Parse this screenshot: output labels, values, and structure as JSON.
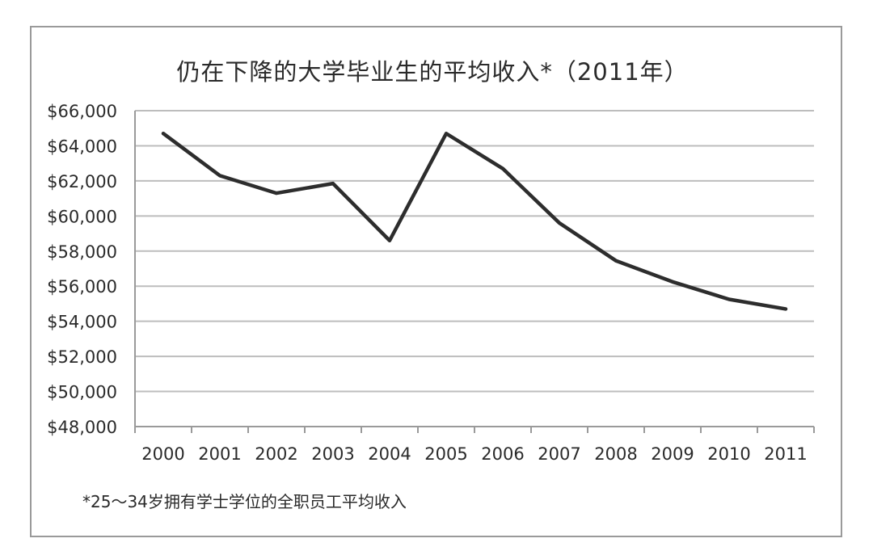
{
  "chart_data": {
    "type": "line",
    "title": "仍在下降的大学毕业生的平均收入*（2011年）",
    "xlabel": "",
    "ylabel": "",
    "categories": [
      "2000",
      "2001",
      "2002",
      "2003",
      "2004",
      "2005",
      "2006",
      "2007",
      "2008",
      "2009",
      "2010",
      "2011"
    ],
    "series": [
      {
        "values": [
          64700,
          62300,
          61300,
          61850,
          58600,
          64700,
          62700,
          59600,
          57450,
          56250,
          55250,
          54700
        ]
      }
    ],
    "ylim": [
      48000,
      66000
    ],
    "yticks": [
      48000,
      50000,
      52000,
      54000,
      56000,
      58000,
      60000,
      62000,
      64000,
      66000
    ],
    "ytick_labels": [
      "$48,000",
      "$50,000",
      "$52,000",
      "$54,000",
      "$56,000",
      "$58,000",
      "$60,000",
      "$62,000",
      "$64,000",
      "$66,000"
    ],
    "grid": true,
    "line_color": "#2d2d2d",
    "footnote": "*25～34岁拥有学士学位的全职员工平均收入"
  }
}
